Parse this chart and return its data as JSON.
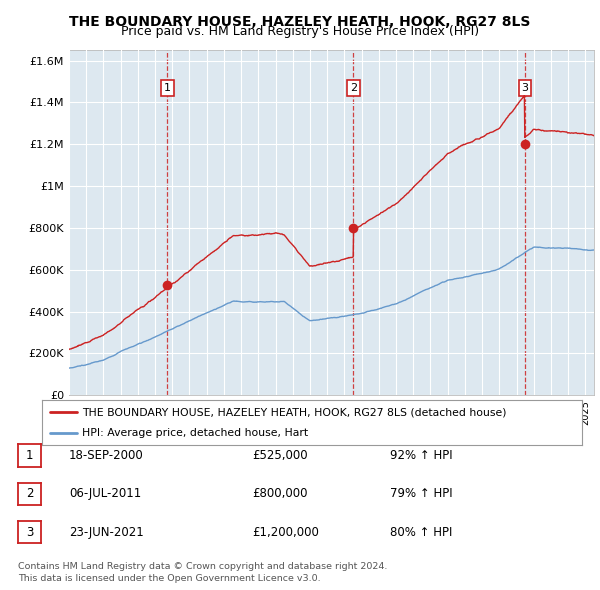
{
  "title": "THE BOUNDARY HOUSE, HAZELEY HEATH, HOOK, RG27 8LS",
  "subtitle": "Price paid vs. HM Land Registry's House Price Index (HPI)",
  "ylim": [
    0,
    1650000
  ],
  "yticks": [
    0,
    200000,
    400000,
    600000,
    800000,
    1000000,
    1200000,
    1400000,
    1600000
  ],
  "ytick_labels": [
    "£0",
    "£200K",
    "£400K",
    "£600K",
    "£800K",
    "£1M",
    "£1.2M",
    "£1.4M",
    "£1.6M"
  ],
  "xlim_start": 1995,
  "xlim_end": 2025.5,
  "red_line_color": "#cc2222",
  "blue_line_color": "#6699cc",
  "chart_bg_color": "#dde8f0",
  "purchase_markers": [
    {
      "year": 2000.72,
      "value": 525000,
      "label": "1"
    },
    {
      "year": 2011.51,
      "value": 800000,
      "label": "2"
    },
    {
      "year": 2021.48,
      "value": 1200000,
      "label": "3"
    }
  ],
  "legend_red": "THE BOUNDARY HOUSE, HAZELEY HEATH, HOOK, RG27 8LS (detached house)",
  "legend_blue": "HPI: Average price, detached house, Hart",
  "table_rows": [
    {
      "num": "1",
      "date": "18-SEP-2000",
      "price": "£525,000",
      "hpi": "92% ↑ HPI"
    },
    {
      "num": "2",
      "date": "06-JUL-2011",
      "price": "£800,000",
      "hpi": "79% ↑ HPI"
    },
    {
      "num": "3",
      "date": "23-JUN-2021",
      "price": "£1,200,000",
      "hpi": "80% ↑ HPI"
    }
  ],
  "footer": "Contains HM Land Registry data © Crown copyright and database right 2024.\nThis data is licensed under the Open Government Licence v3.0.",
  "bg_color": "#ffffff",
  "grid_color": "#ffffff",
  "purchase_vline_color": "#cc2222",
  "title_fontsize": 10,
  "subtitle_fontsize": 9
}
